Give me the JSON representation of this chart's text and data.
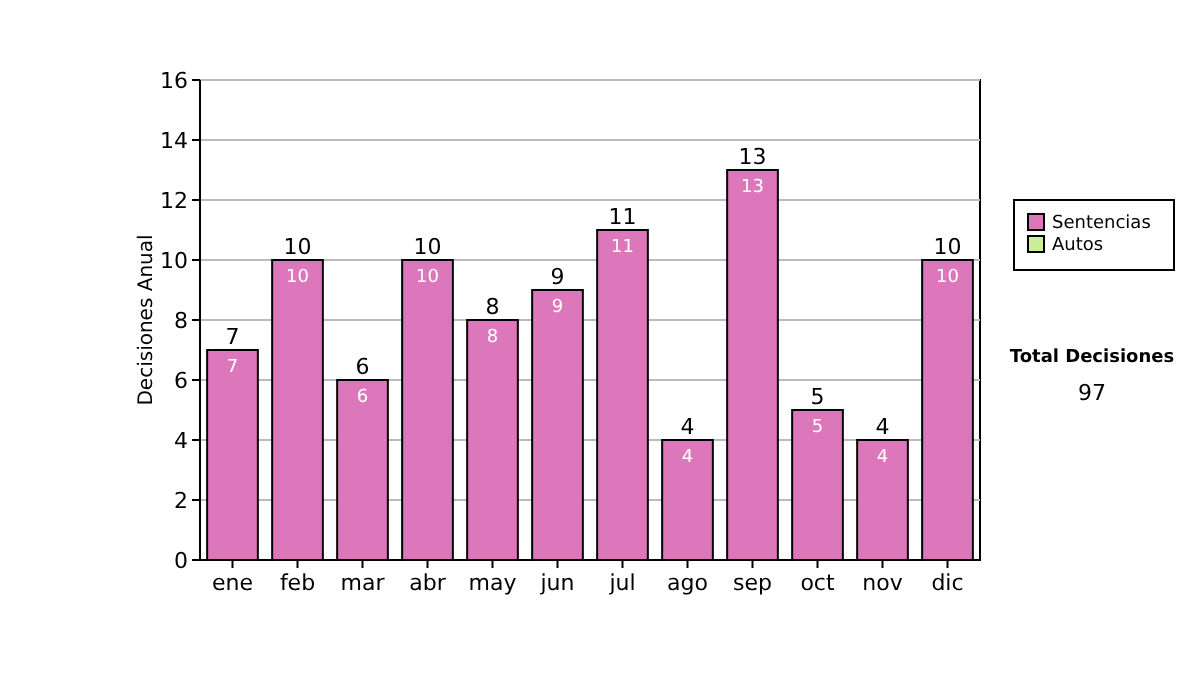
{
  "chart_data": {
    "type": "bar",
    "ylabel": "Decisiones Anual",
    "categories": [
      "ene",
      "feb",
      "mar",
      "abr",
      "may",
      "jun",
      "jul",
      "ago",
      "sep",
      "oct",
      "nov",
      "dic"
    ],
    "series": [
      {
        "name": "Sentencias",
        "color": "#dd77bb",
        "values": [
          7,
          10,
          6,
          10,
          8,
          9,
          11,
          4,
          13,
          5,
          4,
          10
        ]
      },
      {
        "name": "Autos",
        "color": "#ccee99",
        "values": [
          null,
          null,
          null,
          null,
          null,
          null,
          null,
          null,
          null,
          null,
          null,
          null
        ]
      }
    ],
    "stacked": true,
    "data_labels": true,
    "totals": [
      "7",
      "10",
      "6",
      "10",
      "8",
      "9",
      "11",
      "4",
      "13",
      "5",
      "4",
      "10"
    ],
    "ylim": [
      0,
      16
    ],
    "yticks": [
      0,
      2,
      4,
      6,
      8,
      10,
      12,
      14,
      16
    ],
    "grid": "y",
    "legend": "right",
    "annotations": [
      "Total Decisiones",
      "97"
    ]
  }
}
